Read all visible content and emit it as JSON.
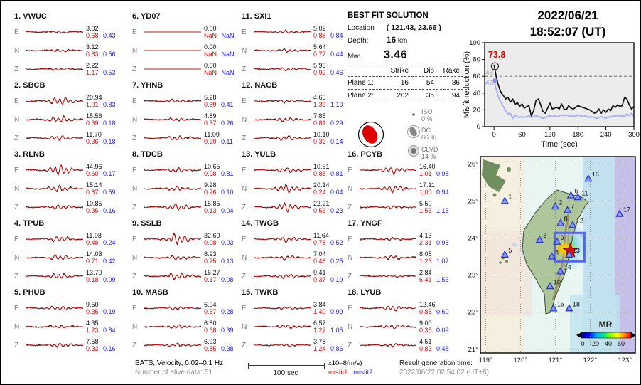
{
  "header": {
    "date": "2022/06/21",
    "time": "18:52:07  (UT)"
  },
  "solution": {
    "title": "BEST FIT SOLUTION",
    "location_label": "Location",
    "location_value": "( 121.43,  23.66 )",
    "depth_label": "Depth:",
    "depth_value": "16",
    "depth_unit": "km",
    "mw_label": "Mw:",
    "mw_value": "3.46",
    "table": {
      "headers": [
        "Strike",
        "Dip",
        "Rake"
      ],
      "rows": [
        {
          "label": "Plane 1:",
          "strike": "16",
          "dip": "54",
          "rake": "86"
        },
        {
          "label": "Plane 2:",
          "strike": "202",
          "dip": "35",
          "rake": "94"
        }
      ]
    },
    "decomposition": [
      {
        "name": "ISO",
        "pct": "0 %"
      },
      {
        "name": "DC",
        "pct": "86 %"
      },
      {
        "name": "CLVD",
        "pct": "14 %"
      }
    ]
  },
  "stations": [
    {
      "num": "1.",
      "code": "VWUC",
      "rows": [
        [
          "E",
          "3.02",
          "0.68",
          "0.43"
        ],
        [
          "N",
          "3.12",
          "0.83",
          "0.56"
        ],
        [
          "Z",
          "2.22",
          "1.17",
          "0.53"
        ]
      ]
    },
    {
      "num": "2.",
      "code": "SBCB",
      "rows": [
        [
          "E",
          "20.94",
          "1.01",
          "0.83"
        ],
        [
          "N",
          "15.56",
          "0.39",
          "0.18"
        ],
        [
          "Z",
          "11.70",
          "0.36",
          "0.18"
        ]
      ]
    },
    {
      "num": "3.",
      "code": "RLNB",
      "rows": [
        [
          "E",
          "44.96",
          "0.60",
          "0.17"
        ],
        [
          "N",
          "15.14",
          "0.87",
          "0.59"
        ],
        [
          "Z",
          "10.85",
          "0.35",
          "0.16"
        ]
      ]
    },
    {
      "num": "4.",
      "code": "TPUB",
      "rows": [
        [
          "E",
          "11.98",
          "0.48",
          "0.24"
        ],
        [
          "N",
          "14.03",
          "0.71",
          "0.42"
        ],
        [
          "Z",
          "13.70",
          "0.18",
          "0.09"
        ]
      ]
    },
    {
      "num": "5.",
      "code": "PHUB",
      "rows": [
        [
          "E",
          "9.50",
          "0.35",
          "0.19"
        ],
        [
          "N",
          "4.35",
          "1.23",
          "0.84"
        ],
        [
          "Z",
          "7.58",
          "0.33",
          "0.16"
        ]
      ]
    },
    {
      "num": "6.",
      "code": "YD07",
      "rows": [
        [
          "E",
          "0.00",
          "NaN",
          "NaN"
        ],
        [
          "N",
          "0.00",
          "NaN",
          "NaN"
        ],
        [
          "Z",
          "0.00",
          "NaN",
          "NaN"
        ]
      ]
    },
    {
      "num": "7.",
      "code": "YHNB",
      "rows": [
        [
          "E",
          "5.28",
          "0.69",
          "0.41"
        ],
        [
          "N",
          "4.89",
          "0.57",
          "0.26"
        ],
        [
          "Z",
          "11.09",
          "0.20",
          "0.11"
        ]
      ]
    },
    {
      "num": "8.",
      "code": "TDCB",
      "rows": [
        [
          "E",
          "10.65",
          "0.98",
          "0.81"
        ],
        [
          "N",
          "9.98",
          "0.26",
          "0.10"
        ],
        [
          "Z",
          "15.85",
          "0.13",
          "0.04"
        ]
      ]
    },
    {
      "num": "9.",
      "code": "SSLB",
      "rows": [
        [
          "E",
          "32.60",
          "0.08",
          "0.03"
        ],
        [
          "N",
          "8.93",
          "0.25",
          "0.13"
        ],
        [
          "Z",
          "16.27",
          "0.17",
          "0.08"
        ]
      ]
    },
    {
      "num": "10.",
      "code": "MASB",
      "rows": [
        [
          "E",
          "6.04",
          "0.57",
          "0.28"
        ],
        [
          "N",
          "6.80",
          "0.68",
          "0.39"
        ],
        [
          "Z",
          "6.93",
          "0.85",
          "0.38"
        ]
      ]
    },
    {
      "num": "11.",
      "code": "SXI1",
      "rows": [
        [
          "E",
          "5.02",
          "0.88",
          "0.84"
        ],
        [
          "N",
          "5.64",
          "0.77",
          "0.44"
        ],
        [
          "Z",
          "5.93",
          "0.92",
          "0.46"
        ]
      ]
    },
    {
      "num": "12.",
      "code": "NACB",
      "rows": [
        [
          "E",
          "4.65",
          "1.39",
          "1.10"
        ],
        [
          "N",
          "7.85",
          "0.81",
          "0.29"
        ],
        [
          "Z",
          "10.10",
          "0.32",
          "0.14"
        ]
      ]
    },
    {
      "num": "13.",
      "code": "YULB",
      "rows": [
        [
          "E",
          "10.51",
          "0.85",
          "0.81"
        ],
        [
          "N",
          "20.14",
          "0.24",
          "0.04"
        ],
        [
          "Z",
          "22.21",
          "0.56",
          "0.23"
        ]
      ]
    },
    {
      "num": "14.",
      "code": "TWGB",
      "rows": [
        [
          "E",
          "11.64",
          "0.78",
          "0.52"
        ],
        [
          "N",
          "7.04",
          "0.46",
          "0.25"
        ],
        [
          "Z",
          "9.41",
          "0.37",
          "0.19"
        ]
      ]
    },
    {
      "num": "15.",
      "code": "TWKB",
      "rows": [
        [
          "E",
          "3.84",
          "1.40",
          "0.99"
        ],
        [
          "N",
          "6.57",
          "1.22",
          "1.05"
        ],
        [
          "Z",
          "3.78",
          "1.24",
          "0.86"
        ]
      ]
    },
    {
      "num": "16.",
      "code": "PCYB",
      "rows": [
        [
          "E",
          "16.40",
          "1.01",
          "0.98"
        ],
        [
          "N",
          "17.11",
          "1.00",
          "0.94"
        ],
        [
          "Z",
          "5.50",
          "1.55",
          "1.15"
        ]
      ]
    },
    {
      "num": "17.",
      "code": "YNGF",
      "rows": [
        [
          "E",
          "4.13",
          "2.31",
          "0.96"
        ],
        [
          "N",
          "8.05",
          "1.23",
          "1.07"
        ],
        [
          "Z",
          "2.84",
          "6.41",
          "1.53"
        ]
      ]
    },
    {
      "num": "18.",
      "code": "LYUB",
      "rows": [
        [
          "E",
          "12.46",
          "0.85",
          "0.60"
        ],
        [
          "N",
          "9.00",
          "0.35",
          "0.09"
        ],
        [
          "Z",
          "4.51",
          "0.83",
          "0.48"
        ]
      ]
    }
  ],
  "footer": {
    "line1": "BATS, Velocity, 0.02–0.1 Hz",
    "line2": "Number of alive data: 51",
    "scalebar": "100 sec",
    "unit": "x10–8(m/s)",
    "misfit1": "misfit1",
    "misfit2": "misfit2",
    "result_label": "Result generation time:",
    "result_time": "2022/06/22 02:54:02 (UT+8)"
  },
  "colors": {
    "trace_black": "#111111",
    "trace_red": "#cc1111",
    "misfit2_blue": "#2222dd",
    "curve_blue": "#a9aff2",
    "annot_red": "#dd0000",
    "beachball_red": "#dd0000",
    "station_triangle": "#8a97f0",
    "epicenter_red": "#e01010"
  },
  "chart_data": [
    {
      "type": "line",
      "title": "Misfit reduction vs time",
      "ylabel": "Misfit reduction (%)",
      "xlabel": "Time (sec)",
      "xlim": [
        -20,
        300
      ],
      "ylim": [
        0,
        100
      ],
      "xticks": [
        0,
        60,
        120,
        180,
        240,
        300
      ],
      "yticks": [
        0,
        20,
        40,
        60,
        80,
        100
      ],
      "dashed_y": 60,
      "legend_position": "none",
      "grid": false,
      "annotations": [
        {
          "text": "73.8",
          "color": "#dd0000",
          "value": 73.8
        },
        {
          "text": "48",
          "color": "#999999",
          "value": 64
        },
        {
          "text": "46",
          "color": "#8890e8",
          "value": 52
        }
      ],
      "series": [
        {
          "name": "misfit1-black",
          "color": "#111111",
          "points": [
            [
              0,
              73.8
            ],
            [
              4,
              62
            ],
            [
              8,
              52
            ],
            [
              12,
              45
            ],
            [
              16,
              40
            ],
            [
              20,
              37
            ],
            [
              25,
              33
            ],
            [
              30,
              35
            ],
            [
              35,
              29
            ],
            [
              40,
              33
            ],
            [
              45,
              26
            ],
            [
              50,
              29
            ],
            [
              55,
              24
            ],
            [
              60,
              27
            ],
            [
              65,
              22
            ],
            [
              70,
              24
            ],
            [
              75,
              25
            ],
            [
              80,
              13
            ],
            [
              85,
              19
            ],
            [
              90,
              31
            ],
            [
              95,
              33
            ],
            [
              100,
              26
            ],
            [
              105,
              18
            ],
            [
              110,
              16
            ],
            [
              115,
              22
            ],
            [
              120,
              28
            ],
            [
              125,
              21
            ],
            [
              130,
              22
            ],
            [
              135,
              23
            ],
            [
              140,
              21
            ],
            [
              145,
              27
            ],
            [
              150,
              21
            ],
            [
              155,
              20
            ],
            [
              160,
              25
            ],
            [
              165,
              22
            ],
            [
              170,
              21
            ],
            [
              175,
              23
            ],
            [
              180,
              25
            ],
            [
              185,
              24
            ],
            [
              190,
              23
            ],
            [
              195,
              22
            ],
            [
              200,
              21
            ],
            [
              205,
              20
            ],
            [
              210,
              18
            ],
            [
              215,
              16
            ],
            [
              220,
              17
            ],
            [
              225,
              21
            ],
            [
              230,
              16
            ],
            [
              235,
              20
            ],
            [
              240,
              17
            ],
            [
              245,
              21
            ],
            [
              250,
              19
            ],
            [
              255,
              25
            ],
            [
              260,
              23
            ],
            [
              265,
              26
            ],
            [
              270,
              24
            ],
            [
              275,
              25
            ],
            [
              280,
              35
            ],
            [
              285,
              33
            ],
            [
              290,
              26
            ],
            [
              295,
              21
            ],
            [
              300,
              24
            ]
          ]
        },
        {
          "name": "misfit2-blue",
          "color": "#a9aff2",
          "points": [
            [
              0,
              55
            ],
            [
              4,
              46
            ],
            [
              8,
              38
            ],
            [
              12,
              32
            ],
            [
              16,
              28
            ],
            [
              20,
              24
            ],
            [
              25,
              19
            ],
            [
              30,
              15
            ],
            [
              35,
              16
            ],
            [
              40,
              10
            ],
            [
              45,
              14
            ],
            [
              50,
              12
            ],
            [
              55,
              11
            ],
            [
              60,
              12
            ],
            [
              65,
              11
            ],
            [
              70,
              12
            ],
            [
              75,
              13
            ],
            [
              80,
              11
            ],
            [
              85,
              12
            ],
            [
              90,
              13
            ],
            [
              95,
              12
            ],
            [
              100,
              11
            ],
            [
              105,
              10
            ],
            [
              110,
              11
            ],
            [
              115,
              12
            ],
            [
              120,
              13
            ],
            [
              125,
              12
            ],
            [
              130,
              13
            ],
            [
              135,
              12
            ],
            [
              140,
              13
            ],
            [
              145,
              14
            ],
            [
              150,
              13
            ],
            [
              155,
              14
            ],
            [
              160,
              13
            ],
            [
              165,
              12
            ],
            [
              170,
              13
            ],
            [
              175,
              12
            ],
            [
              180,
              14
            ],
            [
              185,
              13
            ],
            [
              190,
              12
            ],
            [
              195,
              13
            ],
            [
              200,
              12
            ],
            [
              205,
              11
            ],
            [
              210,
              12
            ],
            [
              215,
              11
            ],
            [
              220,
              10
            ],
            [
              225,
              11
            ],
            [
              230,
              12
            ],
            [
              235,
              11
            ],
            [
              240,
              10
            ],
            [
              245,
              12
            ],
            [
              250,
              11
            ],
            [
              255,
              13
            ],
            [
              260,
              12
            ],
            [
              265,
              14
            ],
            [
              270,
              12
            ],
            [
              275,
              13
            ],
            [
              280,
              12
            ],
            [
              285,
              15
            ],
            [
              290,
              13
            ],
            [
              295,
              16
            ],
            [
              300,
              12
            ]
          ]
        }
      ]
    },
    {
      "type": "map",
      "title": "Station map with misfit-reduction heatmap",
      "lon_ticks": [
        "119°",
        "120°",
        "121°",
        "122°",
        "123°"
      ],
      "lat_ticks": [
        "26°",
        "25°",
        "24°",
        "23°",
        "22°",
        "21°"
      ],
      "lon_range": [
        118.85,
        123.3
      ],
      "lat_range": [
        20.9,
        26.2
      ],
      "epicenter": {
        "lon": 121.43,
        "lat": 23.66
      },
      "colorbar": {
        "label": "MR",
        "ticks": [
          "0",
          "20",
          "40",
          "60"
        ]
      },
      "stations": [
        {
          "num": "1",
          "lon": 119.55,
          "lat": 25.0
        },
        {
          "num": "2",
          "lon": 121.0,
          "lat": 24.85
        },
        {
          "num": "3",
          "lon": 120.55,
          "lat": 23.95
        },
        {
          "num": "4",
          "lon": 120.9,
          "lat": 23.5
        },
        {
          "num": "5",
          "lon": 119.55,
          "lat": 23.55
        },
        {
          "num": "6",
          "lon": 121.45,
          "lat": 25.15
        },
        {
          "num": "7",
          "lon": 121.35,
          "lat": 24.75
        },
        {
          "num": "8",
          "lon": 121.15,
          "lat": 24.4
        },
        {
          "num": "9",
          "lon": 121.05,
          "lat": 23.9
        },
        {
          "num": "10",
          "lon": 120.85,
          "lat": 22.7
        },
        {
          "num": "11",
          "lon": 121.65,
          "lat": 25.1
        },
        {
          "num": "12",
          "lon": 121.5,
          "lat": 24.35
        },
        {
          "num": "13",
          "lon": 121.4,
          "lat": 23.55
        },
        {
          "num": "14",
          "lon": 121.15,
          "lat": 23.1
        },
        {
          "num": "15",
          "lon": 120.95,
          "lat": 22.1
        },
        {
          "num": "16",
          "lon": 121.95,
          "lat": 25.6
        },
        {
          "num": "17",
          "lon": 122.85,
          "lat": 24.65
        },
        {
          "num": "18",
          "lon": 121.4,
          "lat": 22.1
        }
      ]
    }
  ]
}
